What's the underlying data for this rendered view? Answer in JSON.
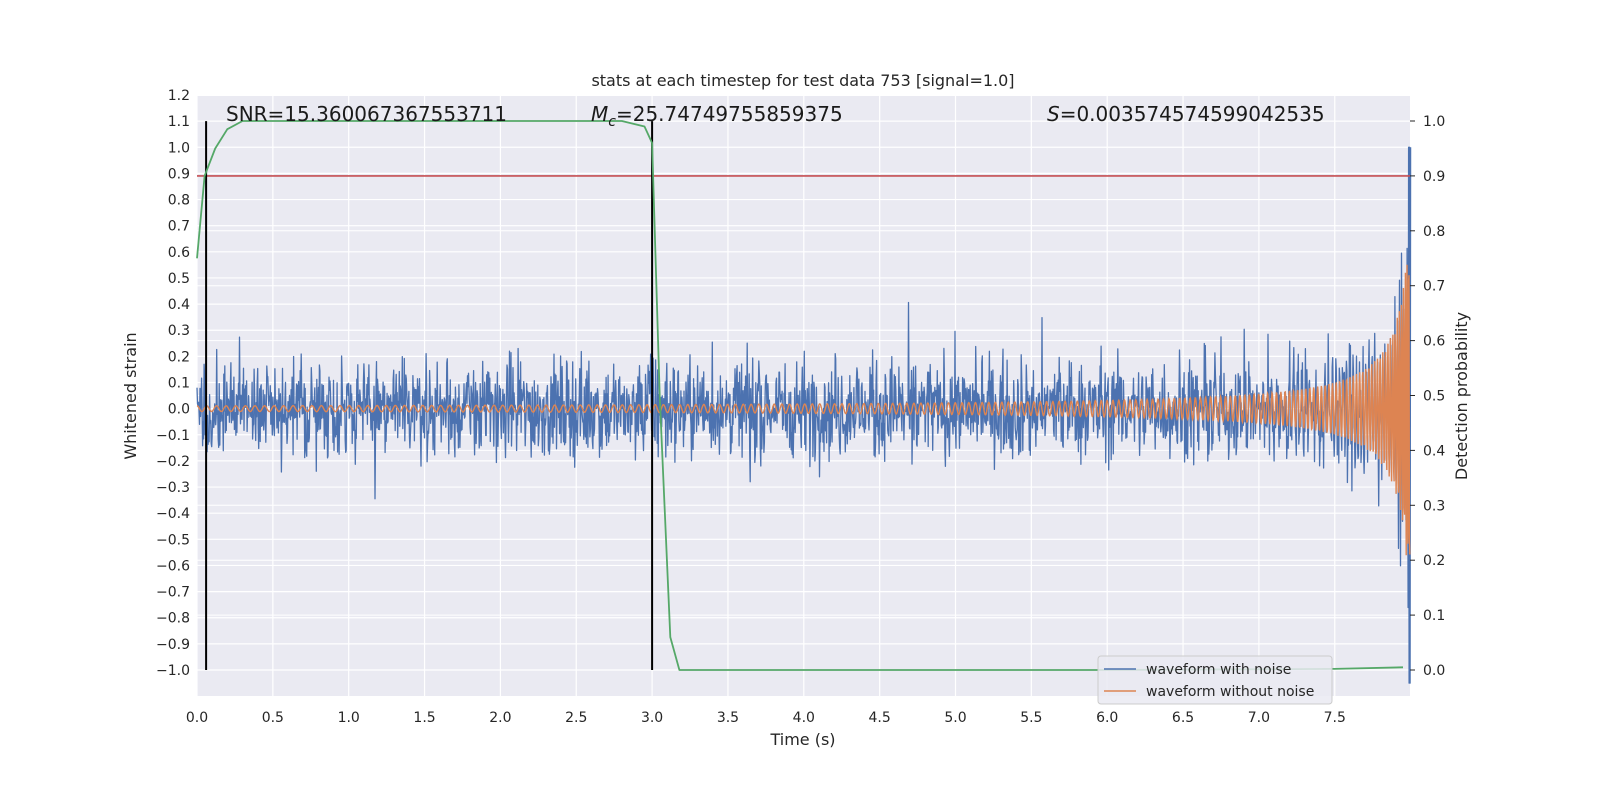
{
  "chart_data": {
    "type": "line",
    "title": "stats at each timestep for test data 753 [signal=1.0]",
    "xlabel": "Time (s)",
    "ylabel": "Whitened strain",
    "y2label": "Detection probability",
    "xlim": [
      0.0,
      8.0
    ],
    "ylim": [
      -1.1,
      1.2
    ],
    "y2lim": [
      -0.047,
      1.045
    ],
    "x_ticks": [
      "0.0",
      "0.5",
      "1.0",
      "1.5",
      "2.0",
      "2.5",
      "3.0",
      "3.5",
      "4.0",
      "4.5",
      "5.0",
      "5.5",
      "6.0",
      "6.5",
      "7.0",
      "7.5"
    ],
    "y_ticks": [
      "1.2",
      "1.1",
      "1.0",
      "0.9",
      "0.8",
      "0.7",
      "0.6",
      "0.5",
      "0.4",
      "0.3",
      "0.2",
      "0.1",
      "0.0",
      "−0.1",
      "−0.2",
      "−0.3",
      "−0.4",
      "−0.5",
      "−0.6",
      "−0.7",
      "−0.8",
      "−0.9",
      "−1.0"
    ],
    "y2_ticks": [
      "1.0",
      "0.9",
      "0.8",
      "0.7",
      "0.6",
      "0.5",
      "0.4",
      "0.3",
      "0.2",
      "0.1",
      "0.0"
    ],
    "grid": true,
    "annotations": {
      "snr": "SNR=15.360067367553711",
      "mc": "=25.74749755859375",
      "mc_symbol": "M",
      "mc_sub": "c",
      "s": "=0.003574574599042535",
      "s_symbol": "S"
    },
    "series": [
      {
        "name": "waveform with noise",
        "color": "#4c72b0",
        "axis": "left",
        "noise_amplitude": 0.18,
        "peak_time": 7.98,
        "peak_value": 1.0,
        "min_value": -1.05
      },
      {
        "name": "waveform without noise",
        "color": "#dd8452",
        "axis": "left",
        "start_amplitude": 0.003,
        "end_amplitude": 0.82
      },
      {
        "name": "detection probability",
        "color": "#55a868",
        "axis": "right",
        "x": [
          0.0,
          0.05,
          0.12,
          0.2,
          0.3,
          0.5,
          1.0,
          2.0,
          2.8,
          2.95,
          3.0,
          3.05,
          3.12,
          3.18,
          3.25,
          4.0,
          6.0,
          7.5,
          7.95
        ],
        "y": [
          0.75,
          0.9,
          0.95,
          0.985,
          1.0,
          1.0,
          1.0,
          1.0,
          1.0,
          0.99,
          0.96,
          0.5,
          0.06,
          0.0,
          0.0,
          0.0,
          0.0,
          0.002,
          0.005
        ]
      },
      {
        "name": "threshold",
        "color": "#c44e52",
        "axis": "right",
        "value": 0.9
      }
    ],
    "vertical_lines": [
      {
        "x": 0.06,
        "color": "#000000"
      },
      {
        "x": 3.0,
        "color": "#000000"
      }
    ],
    "vline_span": [
      -1.0,
      1.1
    ],
    "legend": {
      "placement": "lower-right",
      "entries": [
        "waveform with noise",
        "waveform without noise"
      ]
    }
  }
}
